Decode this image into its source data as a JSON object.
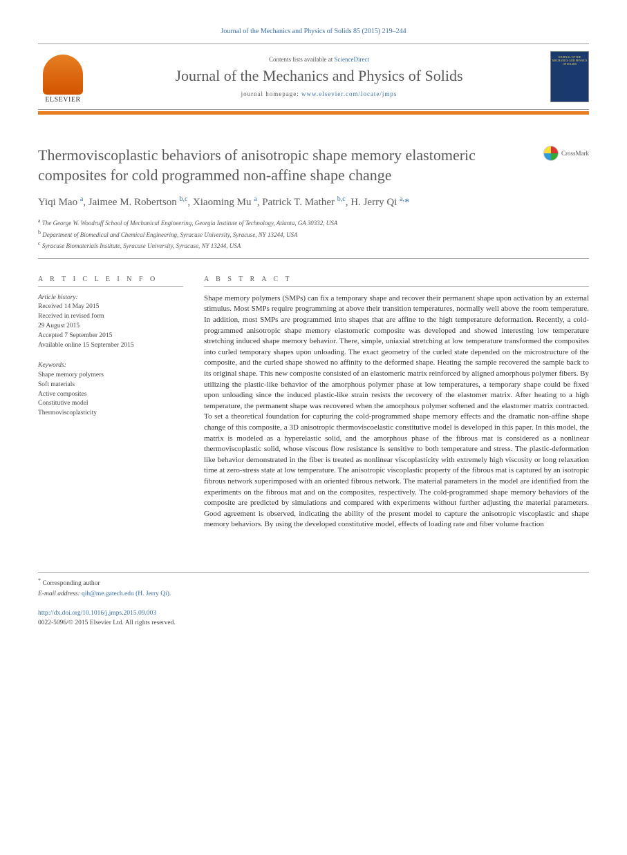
{
  "citation": "Journal of the Mechanics and Physics of Solids 85 (2015) 219–244",
  "header": {
    "contents_prefix": "Contents lists available at ",
    "contents_link": "ScienceDirect",
    "journal_name": "Journal of the Mechanics and Physics of Solids",
    "homepage_prefix": "journal homepage: ",
    "homepage_url": "www.elsevier.com/locate/jmps",
    "publisher": "ELSEVIER",
    "cover_text": "JOURNAL OF THE MECHANICS AND PHYSICS OF SOLIDS"
  },
  "crossmark_label": "CrossMark",
  "title": "Thermoviscoplastic behaviors of anisotropic shape memory elastomeric composites for cold programmed non-affine shape change",
  "authors_html": "Yiqi Mao <sup>a</sup>, Jaimee M. Robertson <sup>b,c</sup>, Xiaoming Mu <sup>a</sup>, Patrick T. Mather <sup>b,c</sup>, H. Jerry Qi <sup>a,</sup><span class='ast'>*</span>",
  "affiliations": {
    "a": "The George W. Woodruff School of Mechanical Engineering, Georgia Institute of Technology, Atlanta, GA 30332, USA",
    "b": "Department of Biomedical and Chemical Engineering, Syracuse University, Syracuse, NY 13244, USA",
    "c": "Syracuse Biomaterials Institute, Syracuse University, Syracuse, NY 13244, USA"
  },
  "article_info": {
    "header": "A R T I C L E  I N F O",
    "history_label": "Article history:",
    "history": [
      "Received 14 May 2015",
      "Received in revised form",
      "29 August 2015",
      "Accepted 7 September 2015",
      "Available online 15 September 2015"
    ],
    "keywords_label": "Keywords:",
    "keywords": [
      "Shape memory polymers",
      "Soft materials",
      "Active composites",
      "Constitutive model",
      "Thermoviscoplasticity"
    ]
  },
  "abstract": {
    "header": "A B S T R A C T",
    "text": "Shape memory polymers (SMPs) can fix a temporary shape and recover their permanent shape upon activation by an external stimulus. Most SMPs require programming at above their transition temperatures, normally well above the room temperature. In addition, most SMPs are programmed into shapes that are affine to the high temperature deformation. Recently, a cold-programmed anisotropic shape memory elastomeric composite was developed and showed interesting low temperature stretching induced shape memory behavior. There, simple, uniaxial stretching at low temperature transformed the composites into curled temporary shapes upon unloading. The exact geometry of the curled state depended on the microstructure of the composite, and the curled shape showed no affinity to the deformed shape. Heating the sample recovered the sample back to its original shape. This new composite consisted of an elastomeric matrix reinforced by aligned amorphous polymer fibers. By utilizing the plastic-like behavior of the amorphous polymer phase at low temperatures, a temporary shape could be fixed upon unloading since the induced plastic-like strain resists the recovery of the elastomer matrix. After heating to a high temperature, the permanent shape was recovered when the amorphous polymer softened and the elastomer matrix contracted. To set a theoretical foundation for capturing the cold-programmed shape memory effects and the dramatic non-affine shape change of this composite, a 3D anisotropic thermoviscoelastic constitutive model is developed in this paper. In this model, the matrix is modeled as a hyperelastic solid, and the amorphous phase of the fibrous mat is considered as a nonlinear thermoviscoplastic solid, whose viscous flow resistance is sensitive to both temperature and stress. The plastic-deformation like behavior demonstrated in the fiber is treated as nonlinear viscoplasticity with extremely high viscosity or long relaxation time at zero-stress state at low temperature. The anisotropic viscoplastic property of the fibrous mat is captured by an isotropic fibrous network superimposed with an oriented fibrous network. The material parameters in the model are identified from the experiments on the fibrous mat and on the composites, respectively. The cold-programmed shape memory behaviors of the composite are predicted by simulations and compared with experiments without further adjusting the material parameters. Good agreement is observed, indicating the ability of the present model to capture the anisotropic viscoplastic and shape memory behaviors. By using the developed constitutive model, effects of loading rate and fiber volume fraction"
  },
  "footer": {
    "corresponding": "Corresponding author",
    "email_label": "E-mail address:",
    "email": "qih@me.gatech.edu (H. Jerry Qi)",
    "doi": "http://dx.doi.org/10.1016/j.jmps.2015.09.003",
    "copyright": "0022-5096/© 2015 Elsevier Ltd. All rights reserved."
  },
  "colors": {
    "link": "#3a6ea5",
    "orange": "#e67e22",
    "text_gray": "#5a5a5a"
  }
}
